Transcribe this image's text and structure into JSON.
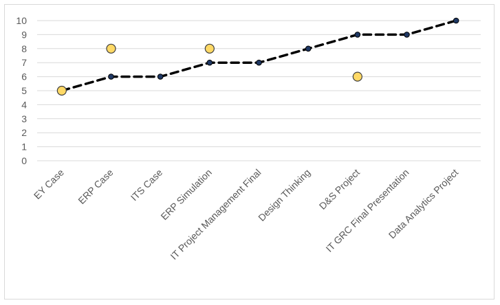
{
  "chart_data": {
    "type": "line",
    "title": "",
    "xlabel": "",
    "ylabel": "",
    "categories": [
      "EY Case",
      "ERP Case",
      "ITS Case",
      "ERP Simulation",
      "IT Project Management Final",
      "Design Thinking",
      "D&S Project",
      "IT GRC Final Presentation",
      "Data Analytics Project"
    ],
    "ylim": [
      0,
      10
    ],
    "yticks": [
      0,
      1,
      2,
      3,
      4,
      5,
      6,
      7,
      8,
      9,
      10
    ],
    "grid": true,
    "legend": "none",
    "series": [
      {
        "style": "dashed line with dark markers",
        "color": "#000000",
        "marker_color": "#1f3864",
        "values": [
          5,
          6,
          6,
          7,
          7,
          8,
          9,
          9,
          10
        ]
      },
      {
        "style": "markers only",
        "color": "#ffd966",
        "marker_edge": "#3f3f3f",
        "values": [
          5,
          8,
          null,
          8,
          null,
          null,
          6,
          null,
          null
        ]
      }
    ]
  }
}
